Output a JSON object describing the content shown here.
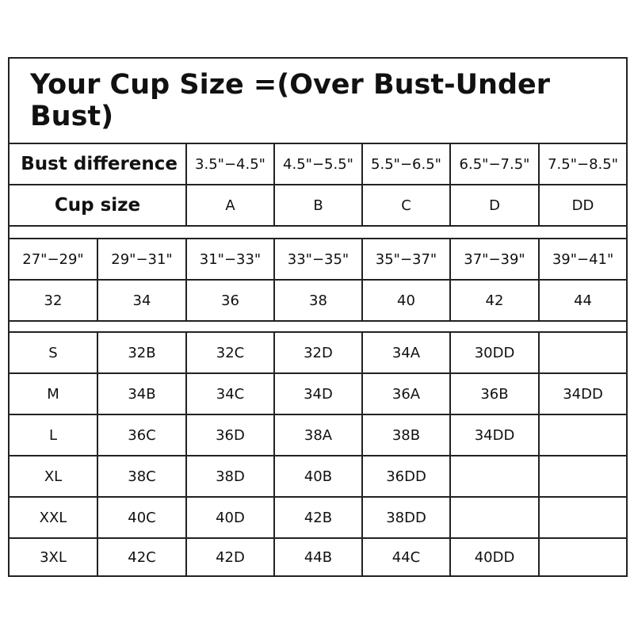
{
  "title": "Your Cup Size =(Over Bust-Under Bust)",
  "bust_difference": {
    "label": "Bust difference",
    "values": [
      "3.5\"−4.5\"",
      "4.5\"−5.5\"",
      "5.5\"−6.5\"",
      "6.5\"−7.5\"",
      "7.5\"−8.5\""
    ]
  },
  "cup_size": {
    "label": "Cup size",
    "values": [
      "A",
      "B",
      "C",
      "D",
      "DD"
    ]
  },
  "under_bust": [
    "27\"−29\"",
    "29\"−31\"",
    "31\"−33\"",
    "33\"−35\"",
    "35\"−37\"",
    "37\"−39\"",
    "39\"−41\""
  ],
  "band_size": [
    "32",
    "34",
    "36",
    "38",
    "40",
    "42",
    "44"
  ],
  "size_rows": [
    [
      "S",
      "32B",
      "32C",
      "32D",
      "34A",
      "30DD",
      ""
    ],
    [
      "M",
      "34B",
      "34C",
      "34D",
      "36A",
      "36B",
      "34DD"
    ],
    [
      "L",
      "36C",
      "36D",
      "38A",
      "38B",
      "34DD",
      ""
    ],
    [
      "XL",
      "38C",
      "38D",
      "40B",
      "36DD",
      "",
      ""
    ],
    [
      "XXL",
      "40C",
      "40D",
      "42B",
      "38DD",
      "",
      ""
    ],
    [
      "3XL",
      "42C",
      "42D",
      "44B",
      "44C",
      "40DD",
      ""
    ]
  ]
}
